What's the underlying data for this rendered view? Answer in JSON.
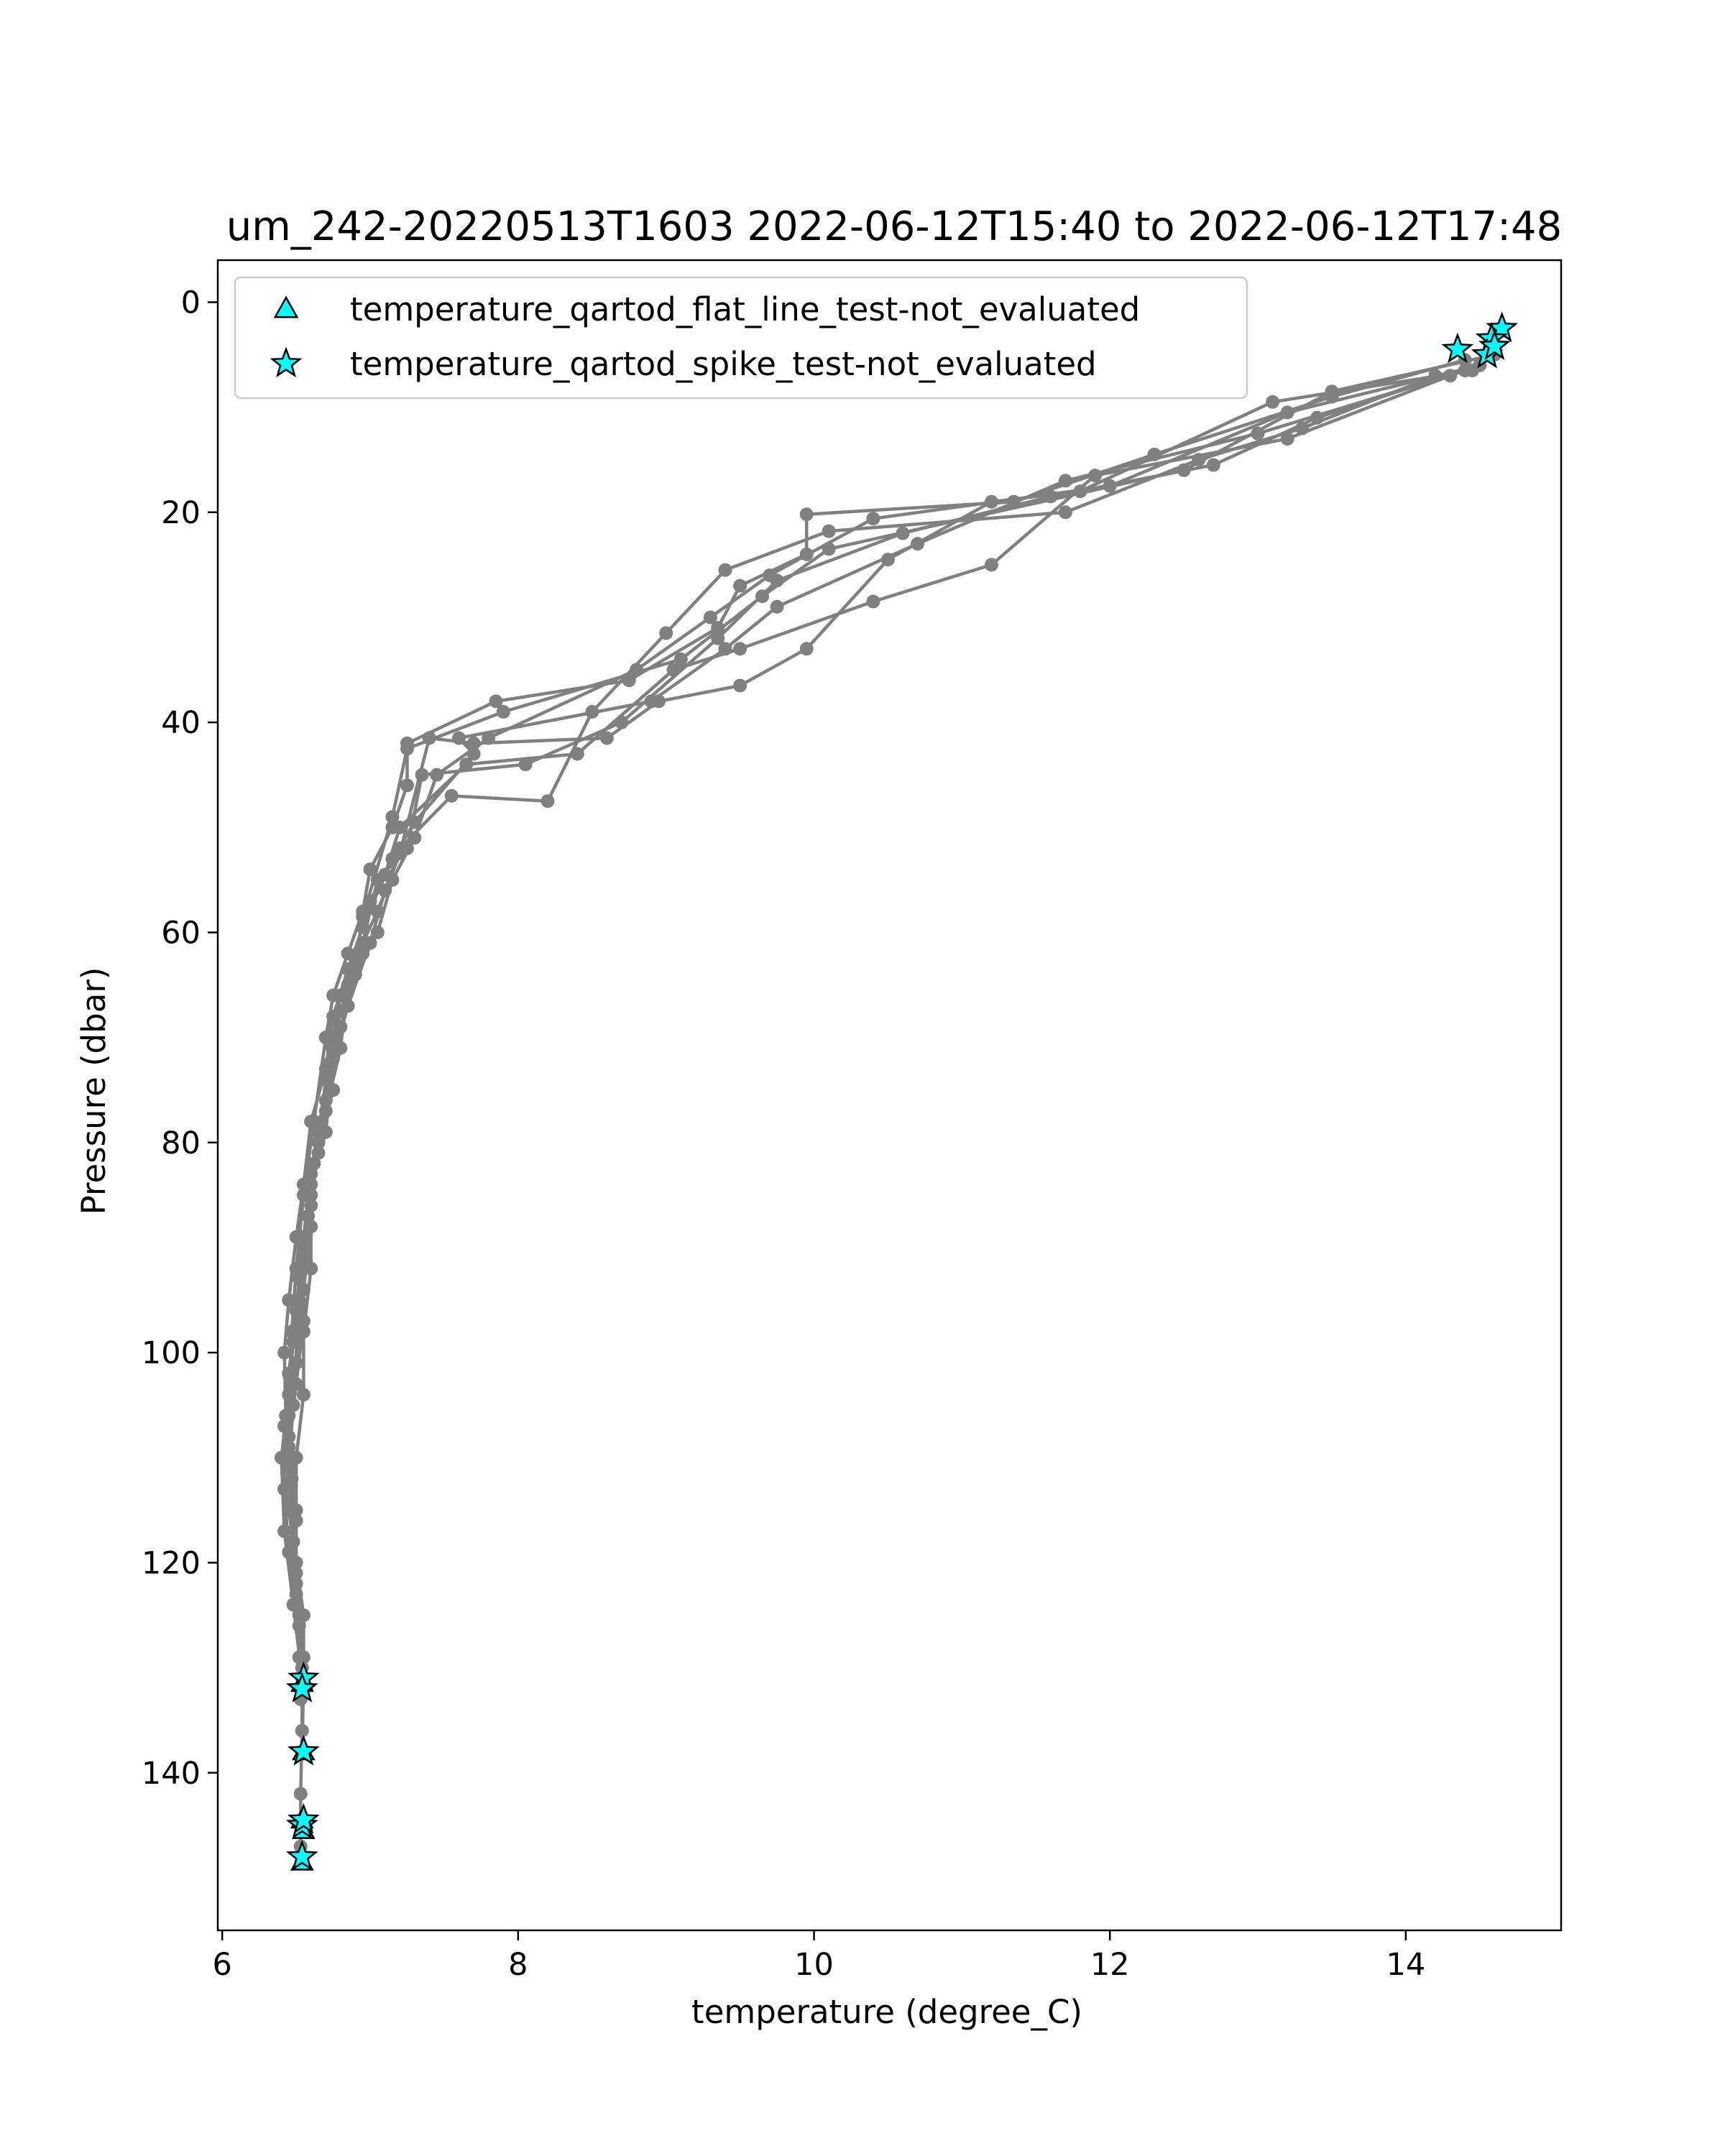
{
  "chart_data": {
    "type": "line",
    "title": "um_242-20220513T1603 2022-06-12T15:40 to 2022-06-12T17:48",
    "xlabel": "temperature (degree_C)",
    "ylabel": "Pressure (dbar)",
    "xlim": [
      5.97,
      15.05
    ],
    "ylim": [
      155,
      -4
    ],
    "y_inverted": true,
    "grid": false,
    "legend_placement": "upper-left",
    "x_ticks": [
      6,
      8,
      10,
      12,
      14
    ],
    "y_ticks": [
      0,
      20,
      40,
      60,
      80,
      100,
      120,
      140
    ],
    "colors": {
      "profile": "#808080",
      "flag_fill": "#00ffff",
      "flag_edge": "#000000"
    },
    "legend": [
      {
        "label": "temperature_qartod_flat_line_test-not_evaluated",
        "marker": "triangle"
      },
      {
        "label": "temperature_qartod_spike_test-not_evaluated",
        "marker": "star"
      }
    ],
    "series": [
      {
        "kind": "profile",
        "x": [
          14.4,
          13.5,
          12.3,
          11.35,
          9.95,
          9.95,
          9.5,
          9.35,
          8.75,
          7.85,
          7.25,
          7.25,
          7.15,
          7.0,
          6.95,
          6.85,
          6.75,
          6.7,
          6.75,
          6.65,
          6.6,
          6.6,
          6.55,
          6.55,
          6.5,
          6.5,
          6.5,
          6.52,
          6.54,
          6.54,
          6.53,
          6.53
        ],
        "y": [
          5.5,
          9,
          14.5,
          19,
          20.2,
          24,
          27,
          31,
          36,
          38,
          42,
          46,
          50,
          54,
          58,
          62,
          66,
          70,
          75,
          80,
          86,
          92,
          98,
          104,
          110,
          116,
          122,
          126,
          130,
          136,
          142,
          147
        ]
      },
      {
        "kind": "profile",
        "x": [
          14.5,
          13.2,
          12.0,
          10.4,
          9.7,
          9.3,
          8.8,
          7.8,
          7.45,
          7.3,
          7.15,
          7.05,
          6.9,
          6.8,
          6.7,
          6.65,
          6.6,
          6.55,
          6.55,
          6.5,
          6.45,
          6.45,
          6.5,
          6.55,
          6.55,
          6.54
        ],
        "y": [
          6,
          10.5,
          17.5,
          20.6,
          26,
          30,
          35,
          41.5,
          45,
          51,
          55,
          60,
          64,
          69,
          74,
          80,
          85,
          91,
          97,
          103,
          109,
          115,
          120,
          125,
          131,
          138
        ]
      },
      {
        "kind": "profile",
        "x": [
          14.2,
          13.3,
          12.6,
          11.7,
          10.1,
          9.4,
          9.0,
          8.5,
          8.2,
          7.55,
          7.2,
          7.1,
          7.0,
          6.85,
          6.75,
          6.7,
          6.6,
          6.55,
          6.5,
          6.45,
          6.42,
          6.42,
          6.45,
          6.5,
          6.52,
          6.53
        ],
        "y": [
          7,
          12,
          15,
          20,
          21.8,
          25.5,
          31.5,
          39,
          47.5,
          47,
          52,
          56,
          61,
          67,
          72,
          79,
          84,
          90,
          96,
          102,
          107,
          113,
          119,
          124,
          129,
          133
        ]
      },
      {
        "kind": "profile",
        "x": [
          14.4,
          13.0,
          11.7,
          10.7,
          9.75,
          9.4,
          8.9,
          7.6,
          7.7,
          7.3,
          7.15,
          7.0,
          6.95,
          6.85,
          6.8,
          6.7,
          6.65,
          6.58,
          6.52,
          6.48,
          6.45,
          6.4,
          6.42,
          6.48,
          6.54
        ],
        "y": [
          6.5,
          12.5,
          17,
          23,
          29,
          33,
          38,
          41.5,
          43,
          49.5,
          53,
          57,
          62,
          65,
          71,
          77,
          81,
          87,
          93,
          99,
          104,
          110,
          117,
          124,
          131
        ]
      },
      {
        "kind": "profile",
        "x": [
          14.3,
          13.2,
          11.9,
          11.2,
          10.4,
          9.5,
          9.05,
          8.4,
          7.65,
          7.2,
          7.1,
          6.95,
          6.85,
          6.75,
          6.7,
          6.6,
          6.55,
          6.5,
          6.45,
          6.42,
          6.43,
          6.47,
          6.5
        ],
        "y": [
          7,
          13,
          16.5,
          25,
          28.5,
          33,
          35,
          43,
          44,
          50,
          54.5,
          59.5,
          63.5,
          68,
          73,
          78,
          84,
          89,
          95,
          100,
          106,
          112,
          121
        ]
      },
      {
        "kind": "profile",
        "x": [
          14.5,
          13.4,
          12.7,
          11.6,
          10.6,
          9.75,
          9.35,
          8.7,
          8.05,
          7.35,
          7.25,
          7.05,
          6.95,
          6.8,
          6.75,
          6.7,
          6.62,
          6.6,
          6.55,
          6.5,
          6.45,
          6.45,
          6.5,
          6.55
        ],
        "y": [
          6,
          11,
          15.5,
          18.5,
          22,
          26.5,
          32,
          40,
          44,
          45,
          52,
          55,
          61,
          66,
          70,
          76,
          82,
          88,
          94,
          101,
          108,
          114,
          123,
          129
        ]
      },
      {
        "kind": "profile",
        "x": [
          14.6,
          13.5,
          12.5,
          10.1,
          9.65,
          9.1,
          7.9,
          7.25,
          7.15,
          6.95,
          6.9,
          6.8,
          6.72,
          6.65,
          6.6,
          6.55,
          6.52,
          6.48,
          6.45,
          6.48,
          6.52
        ],
        "y": [
          5,
          8.5,
          16,
          23.5,
          28,
          34,
          39,
          42.5,
          49,
          58.5,
          63,
          67.5,
          72.5,
          79,
          83,
          89,
          95,
          105,
          111,
          118,
          125
        ]
      },
      {
        "kind": "profile",
        "x": [
          14.45,
          13.1,
          11.8,
          11.2,
          10.5,
          9.95,
          9.5,
          8.95,
          8.6,
          7.7,
          7.4,
          7.2,
          7.05,
          6.9,
          6.8,
          6.7,
          6.62,
          6.55,
          6.5,
          6.47,
          6.45,
          6.5
        ],
        "y": [
          6.5,
          9.5,
          18,
          19,
          24.5,
          33,
          36.5,
          38,
          41.5,
          42,
          41.5,
          52.5,
          58,
          62.5,
          66,
          70,
          78,
          85,
          92,
          98,
          106,
          115
        ]
      },
      {
        "kind": "spike_flags",
        "x": [
          14.65,
          14.58,
          14.55,
          14.6,
          14.35,
          6.55,
          6.54,
          6.55,
          6.54,
          6.55,
          6.54
        ],
        "y": [
          2.5,
          3.5,
          5,
          4.2,
          4.5,
          131,
          132,
          138,
          145,
          144.5,
          148
        ]
      },
      {
        "kind": "flat_line_flags",
        "x": [
          6.54,
          6.55,
          6.54,
          6.55,
          6.54
        ],
        "y": [
          131.5,
          138,
          144.5,
          145.5,
          148.5
        ]
      }
    ]
  }
}
